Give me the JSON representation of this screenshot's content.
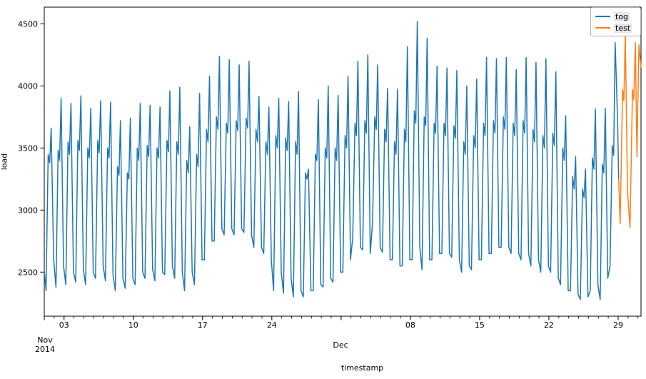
{
  "figure": {
    "background": "#ffffff",
    "xlabel": "timestamp",
    "ylabel": "load"
  },
  "legend": {
    "items": [
      {
        "label": "tog",
        "color": "#1f77b4"
      },
      {
        "label": "test",
        "color": "#ff7f0e"
      }
    ],
    "position": "upper right"
  },
  "x_axis": {
    "month1": {
      "line1": "Nov",
      "line2": "2014"
    },
    "month2": {
      "line1": "Dec"
    },
    "major_ticks": [
      {
        "label": "03",
        "day": 2
      },
      {
        "label": "10",
        "day": 9
      },
      {
        "label": "17",
        "day": 16
      },
      {
        "label": "24",
        "day": 23
      },
      {
        "label": "",
        "day": 30
      },
      {
        "label": "08",
        "day": 37
      },
      {
        "label": "15",
        "day": 44
      },
      {
        "label": "22",
        "day": 51
      },
      {
        "label": "29",
        "day": 58
      }
    ],
    "minor_tick_every_days": 1,
    "start_tick_day": 0
  },
  "y_axis": {
    "ticks": [
      2500,
      3000,
      3500,
      4000,
      4500
    ]
  },
  "chart_data": {
    "type": "line",
    "title": "",
    "xlabel": "timestamp",
    "ylabel": "load",
    "x_start_date": "2014-11-01",
    "x_span_days": 60.31,
    "ylim": [
      2145,
      4635
    ],
    "grid": false,
    "legend_position": "upper right",
    "series_meta": [
      {
        "name": "tog",
        "color": "#1f77b4",
        "role": "training data, Nov 1 - Dec 29"
      },
      {
        "name": "test",
        "color": "#ff7f0e",
        "role": "test data, Dec 29 - Dec 31"
      }
    ],
    "daily_pattern_fractions": {
      "trough": 0.18,
      "morning_peak": 0.4,
      "midday_dip": 0.55,
      "evening_peak": 0.7,
      "late_night": 0.95
    },
    "tog_start_value": 2520,
    "tog_days": [
      {
        "d": "Nov 01",
        "v": [
          2350,
          3450,
          3380,
          3660,
          2600
        ]
      },
      {
        "d": "Nov 02",
        "v": [
          2380,
          3480,
          3400,
          3900,
          2550
        ]
      },
      {
        "d": "Nov 03",
        "v": [
          2400,
          3550,
          3450,
          3860,
          2500
        ]
      },
      {
        "d": "Nov 04",
        "v": [
          2420,
          3560,
          3480,
          3920,
          2520
        ]
      },
      {
        "d": "Nov 05",
        "v": [
          2400,
          3500,
          3420,
          3820,
          2500
        ]
      },
      {
        "d": "Nov 06",
        "v": [
          2450,
          3560,
          3460,
          3880,
          2550
        ]
      },
      {
        "d": "Nov 07",
        "v": [
          2430,
          3500,
          3420,
          3870,
          2480
        ]
      },
      {
        "d": "Nov 08",
        "v": [
          2350,
          3350,
          3280,
          3720,
          2450
        ]
      },
      {
        "d": "Nov 09",
        "v": [
          2370,
          3300,
          3250,
          3740,
          2450
        ]
      },
      {
        "d": "Nov 10",
        "v": [
          2400,
          3500,
          3400,
          3860,
          2500
        ]
      },
      {
        "d": "Nov 11",
        "v": [
          2450,
          3520,
          3430,
          3845,
          2520
        ]
      },
      {
        "d": "Nov 12",
        "v": [
          2430,
          3500,
          3420,
          3830,
          2500
        ]
      },
      {
        "d": "Nov 13",
        "v": [
          2480,
          3560,
          3470,
          3960,
          2550
        ]
      },
      {
        "d": "Nov 14",
        "v": [
          2450,
          3550,
          3450,
          3990,
          2500
        ]
      },
      {
        "d": "Nov 15",
        "v": [
          2350,
          3400,
          3300,
          3670,
          2500
        ]
      },
      {
        "d": "Nov 16",
        "v": [
          2400,
          3450,
          3350,
          3940,
          2600
        ]
      },
      {
        "d": "Nov 17",
        "v": [
          2600,
          3650,
          3550,
          4080,
          2750
        ]
      },
      {
        "d": "Nov 18",
        "v": [
          2750,
          3750,
          3650,
          4240,
          2850
        ]
      },
      {
        "d": "Nov 19",
        "v": [
          2800,
          3700,
          3620,
          4210,
          2850
        ]
      },
      {
        "d": "Nov 20",
        "v": [
          2800,
          3720,
          3640,
          4170,
          2850
        ]
      },
      {
        "d": "Nov 21",
        "v": [
          2820,
          3740,
          3660,
          4200,
          2800
        ]
      },
      {
        "d": "Nov 22",
        "v": [
          2700,
          3650,
          3550,
          3915,
          2700
        ]
      },
      {
        "d": "Nov 23",
        "v": [
          2650,
          3550,
          3450,
          3830,
          2600
        ]
      },
      {
        "d": "Nov 24",
        "v": [
          2350,
          3600,
          3500,
          3900,
          2500
        ]
      },
      {
        "d": "Nov 25",
        "v": [
          2330,
          3580,
          3480,
          3875,
          2450
        ]
      },
      {
        "d": "Nov 26",
        "v": [
          2300,
          3550,
          3450,
          3955,
          2350
        ]
      },
      {
        "d": "Nov 27",
        "v": [
          2300,
          3300,
          3250,
          3330,
          2350
        ]
      },
      {
        "d": "Nov 28",
        "v": [
          2350,
          3450,
          3400,
          3890,
          2400
        ]
      },
      {
        "d": "Nov 29",
        "v": [
          2380,
          3500,
          3420,
          4000,
          2450
        ]
      },
      {
        "d": "Nov 30",
        "v": [
          2420,
          3500,
          3400,
          3925,
          2500
        ]
      },
      {
        "d": "Dec 01",
        "v": [
          2500,
          3600,
          3500,
          4080,
          2600
        ]
      },
      {
        "d": "Dec 02",
        "v": [
          2780,
          3700,
          3600,
          4200,
          2700
        ]
      },
      {
        "d": "Dec 03",
        "v": [
          2680,
          3720,
          3620,
          4250,
          2650
        ]
      },
      {
        "d": "Dec 04",
        "v": [
          2900,
          3750,
          3650,
          4170,
          2700
        ]
      },
      {
        "d": "Dec 05",
        "v": [
          2660,
          3650,
          3550,
          3980,
          2600
        ]
      },
      {
        "d": "Dec 06",
        "v": [
          2600,
          3550,
          3450,
          3975,
          2550
        ]
      },
      {
        "d": "Dec 07",
        "v": [
          2550,
          3650,
          3550,
          4315,
          2600
        ]
      },
      {
        "d": "Dec 08",
        "v": [
          2600,
          3800,
          3700,
          4520,
          2700
        ]
      },
      {
        "d": "Dec 09",
        "v": [
          2520,
          3750,
          3680,
          4385,
          2600
        ]
      },
      {
        "d": "Dec 10",
        "v": [
          2600,
          3700,
          3620,
          4160,
          2650
        ]
      },
      {
        "d": "Dec 11",
        "v": [
          2650,
          3700,
          3600,
          4145,
          2650
        ]
      },
      {
        "d": "Dec 12",
        "v": [
          2620,
          3680,
          3580,
          4125,
          2600
        ]
      },
      {
        "d": "Dec 13",
        "v": [
          2500,
          3550,
          3450,
          4000,
          2550
        ]
      },
      {
        "d": "Dec 14",
        "v": [
          2520,
          3600,
          3500,
          4055,
          2600
        ]
      },
      {
        "d": "Dec 15",
        "v": [
          2600,
          3700,
          3600,
          4230,
          2650
        ]
      },
      {
        "d": "Dec 16",
        "v": [
          2650,
          3720,
          3620,
          4220,
          2700
        ]
      },
      {
        "d": "Dec 17",
        "v": [
          2700,
          3750,
          3650,
          4230,
          2700
        ]
      },
      {
        "d": "Dec 18",
        "v": [
          2650,
          3700,
          3600,
          4130,
          2650
        ]
      },
      {
        "d": "Dec 19",
        "v": [
          2600,
          3720,
          3620,
          4230,
          2650
        ]
      },
      {
        "d": "Dec 20",
        "v": [
          2550,
          3650,
          3550,
          4190,
          2600
        ]
      },
      {
        "d": "Dec 21",
        "v": [
          2500,
          3600,
          3500,
          4220,
          2550
        ]
      },
      {
        "d": "Dec 22",
        "v": [
          2500,
          3620,
          3520,
          4115,
          2450
        ]
      },
      {
        "d": "Dec 23",
        "v": [
          2400,
          3500,
          3400,
          3760,
          2350
        ]
      },
      {
        "d": "Dec 24",
        "v": [
          2350,
          3270,
          3170,
          3430,
          2320
        ]
      },
      {
        "d": "Dec 25",
        "v": [
          2280,
          3170,
          3100,
          3330,
          2300
        ]
      },
      {
        "d": "Dec 26",
        "v": [
          2350,
          3420,
          3330,
          3815,
          2400
        ]
      },
      {
        "d": "Dec 27",
        "v": [
          2280,
          3370,
          3300,
          3820,
          2450
        ]
      },
      {
        "d": "Dec 28",
        "v": [
          2550,
          3520,
          3440,
          4350,
          3700
        ]
      }
    ],
    "tog_tail_points": [
      [
        58.05,
        3250
      ]
    ],
    "test_points": [
      [
        58.05,
        3250
      ],
      [
        58.2,
        2890
      ],
      [
        58.45,
        3970
      ],
      [
        58.58,
        3880
      ],
      [
        58.72,
        4420
      ],
      [
        58.95,
        3150
      ],
      [
        59.2,
        2860
      ],
      [
        59.45,
        3970
      ],
      [
        59.58,
        3890
      ],
      [
        59.74,
        4350
      ],
      [
        59.9,
        3430
      ],
      [
        60.1,
        4330
      ],
      [
        60.31,
        4150
      ]
    ]
  }
}
